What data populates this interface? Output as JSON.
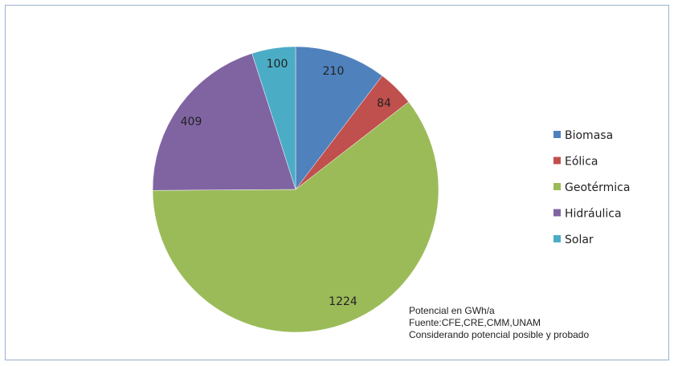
{
  "chart_data": {
    "type": "pie",
    "title": "",
    "slices": [
      {
        "name": "Biomasa",
        "value": 210,
        "label": "210",
        "color": "#4f81bd"
      },
      {
        "name": "Eólica",
        "value": 84,
        "label": "84",
        "color": "#c0504d"
      },
      {
        "name": "Geotérmica",
        "value": 1224,
        "label": "1224",
        "color": "#9bbb59"
      },
      {
        "name": "Hidráulica",
        "value": 409,
        "label": "409",
        "color": "#8064a2"
      },
      {
        "name": "Solar",
        "value": 100,
        "label": "100",
        "color": "#4bacc6"
      }
    ],
    "legend_position": "right",
    "start_angle_deg": 0,
    "direction": "clockwise"
  },
  "notes": [
    "Potencial en GWh/a",
    "Fuente:CFE,CRE,CMM,UNAM",
    "Considerando potencial posible y probado"
  ]
}
